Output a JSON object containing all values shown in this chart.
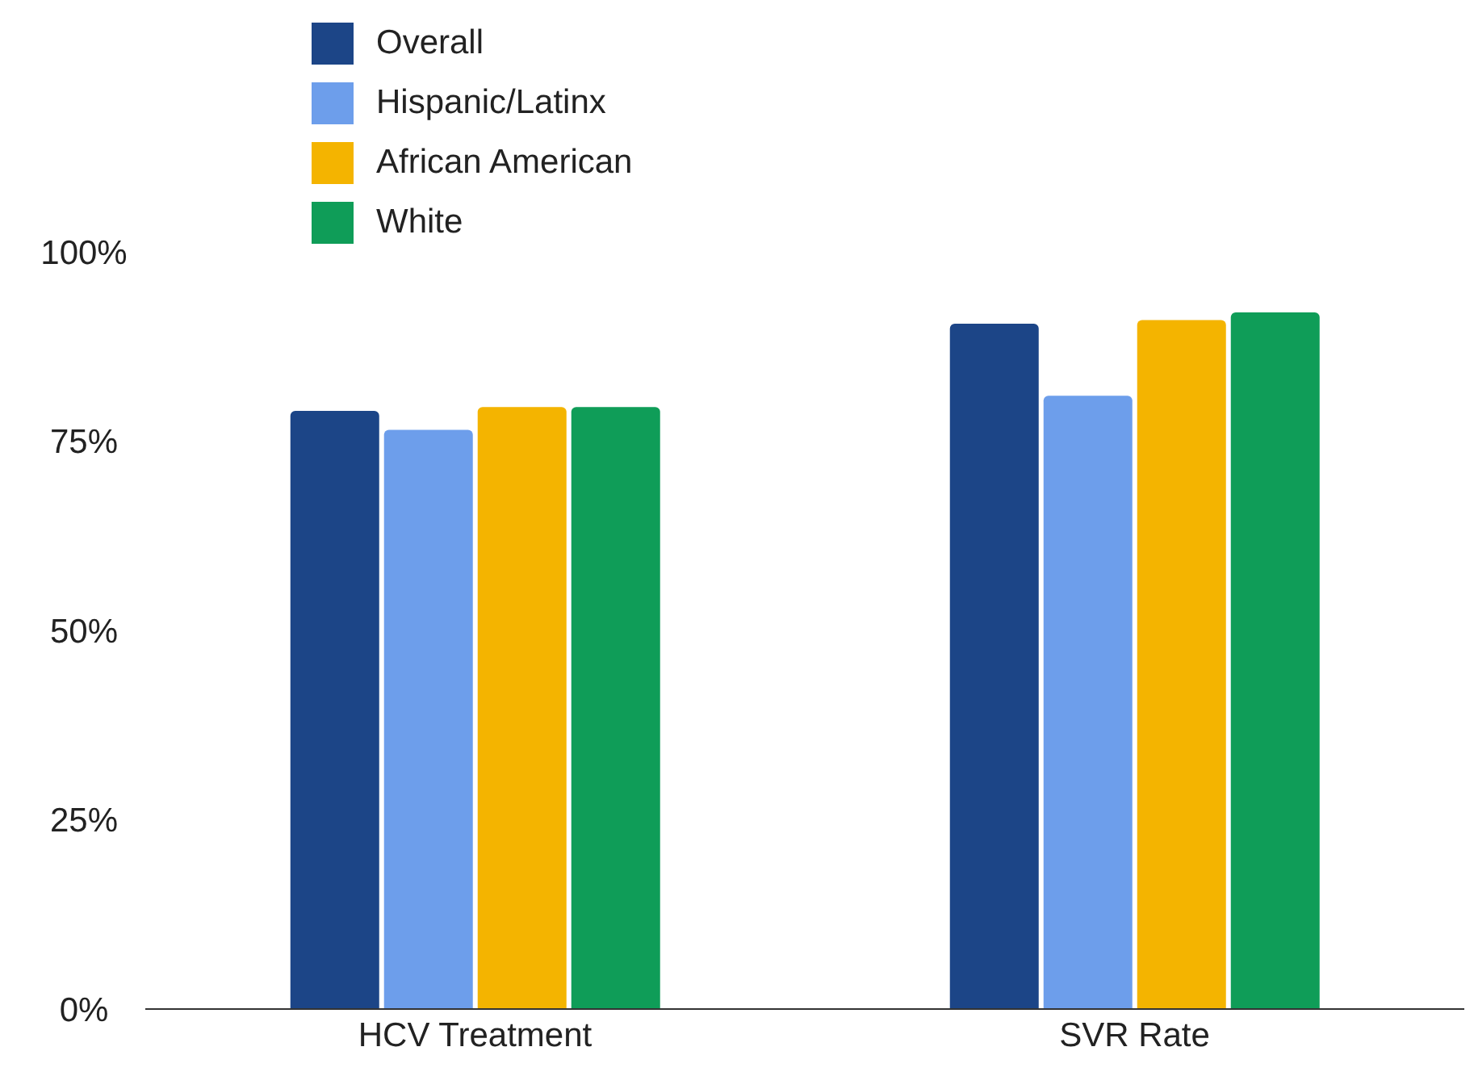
{
  "chart_data": {
    "type": "bar",
    "categories": [
      "HCV Treatment",
      "SVR Rate"
    ],
    "series": [
      {
        "name": "Overall",
        "color": "#1c4587",
        "values": [
          79,
          90.5
        ]
      },
      {
        "name": "Hispanic/Latinx",
        "color": "#6d9eeb",
        "values": [
          76.5,
          81
        ]
      },
      {
        "name": "African American",
        "color": "#f4b400",
        "values": [
          79.5,
          91
        ]
      },
      {
        "name": "White",
        "color": "#0f9d58",
        "values": [
          79.5,
          92
        ]
      }
    ],
    "ylim": [
      0,
      100
    ],
    "yticks": [
      {
        "value": 0,
        "label": "0%"
      },
      {
        "value": 25,
        "label": "25%"
      },
      {
        "value": 50,
        "label": "50%"
      },
      {
        "value": 75,
        "label": "75%"
      },
      {
        "value": 100,
        "label": "100%"
      }
    ],
    "grid": false,
    "legend": "top left"
  }
}
